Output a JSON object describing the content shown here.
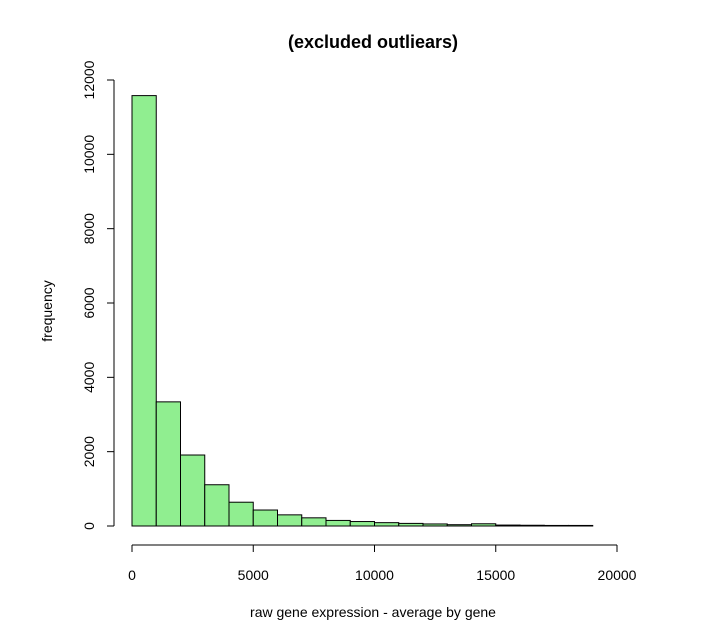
{
  "chart_data": {
    "type": "bar",
    "subtype": "histogram",
    "title": "(excluded outliears)",
    "xlabel": "raw gene expression - average by gene",
    "ylabel": "frequency",
    "bar_color": "#90ee90",
    "bar_edge_color": "#000000",
    "xlim": [
      0,
      20000
    ],
    "ylim": [
      0,
      12000
    ],
    "x_ticks": [
      0,
      5000,
      10000,
      15000,
      20000
    ],
    "x_tick_labels": [
      "0",
      "5000",
      "10000",
      "15000",
      "20000"
    ],
    "y_ticks": [
      0,
      2000,
      4000,
      6000,
      8000,
      10000,
      12000
    ],
    "y_tick_labels": [
      "0",
      "2000",
      "4000",
      "6000",
      "8000",
      "10000",
      "12000"
    ],
    "grid": false,
    "bin_edges": [
      0,
      1000,
      2000,
      3000,
      4000,
      5000,
      6000,
      7000,
      8000,
      9000,
      10000,
      11000,
      12000,
      13000,
      14000,
      15000,
      16000,
      17000,
      18000,
      19000,
      20000
    ],
    "values": [
      11580,
      3340,
      1910,
      1110,
      640,
      430,
      300,
      220,
      150,
      120,
      90,
      70,
      55,
      35,
      60,
      25,
      20,
      15,
      15,
      0
    ]
  }
}
